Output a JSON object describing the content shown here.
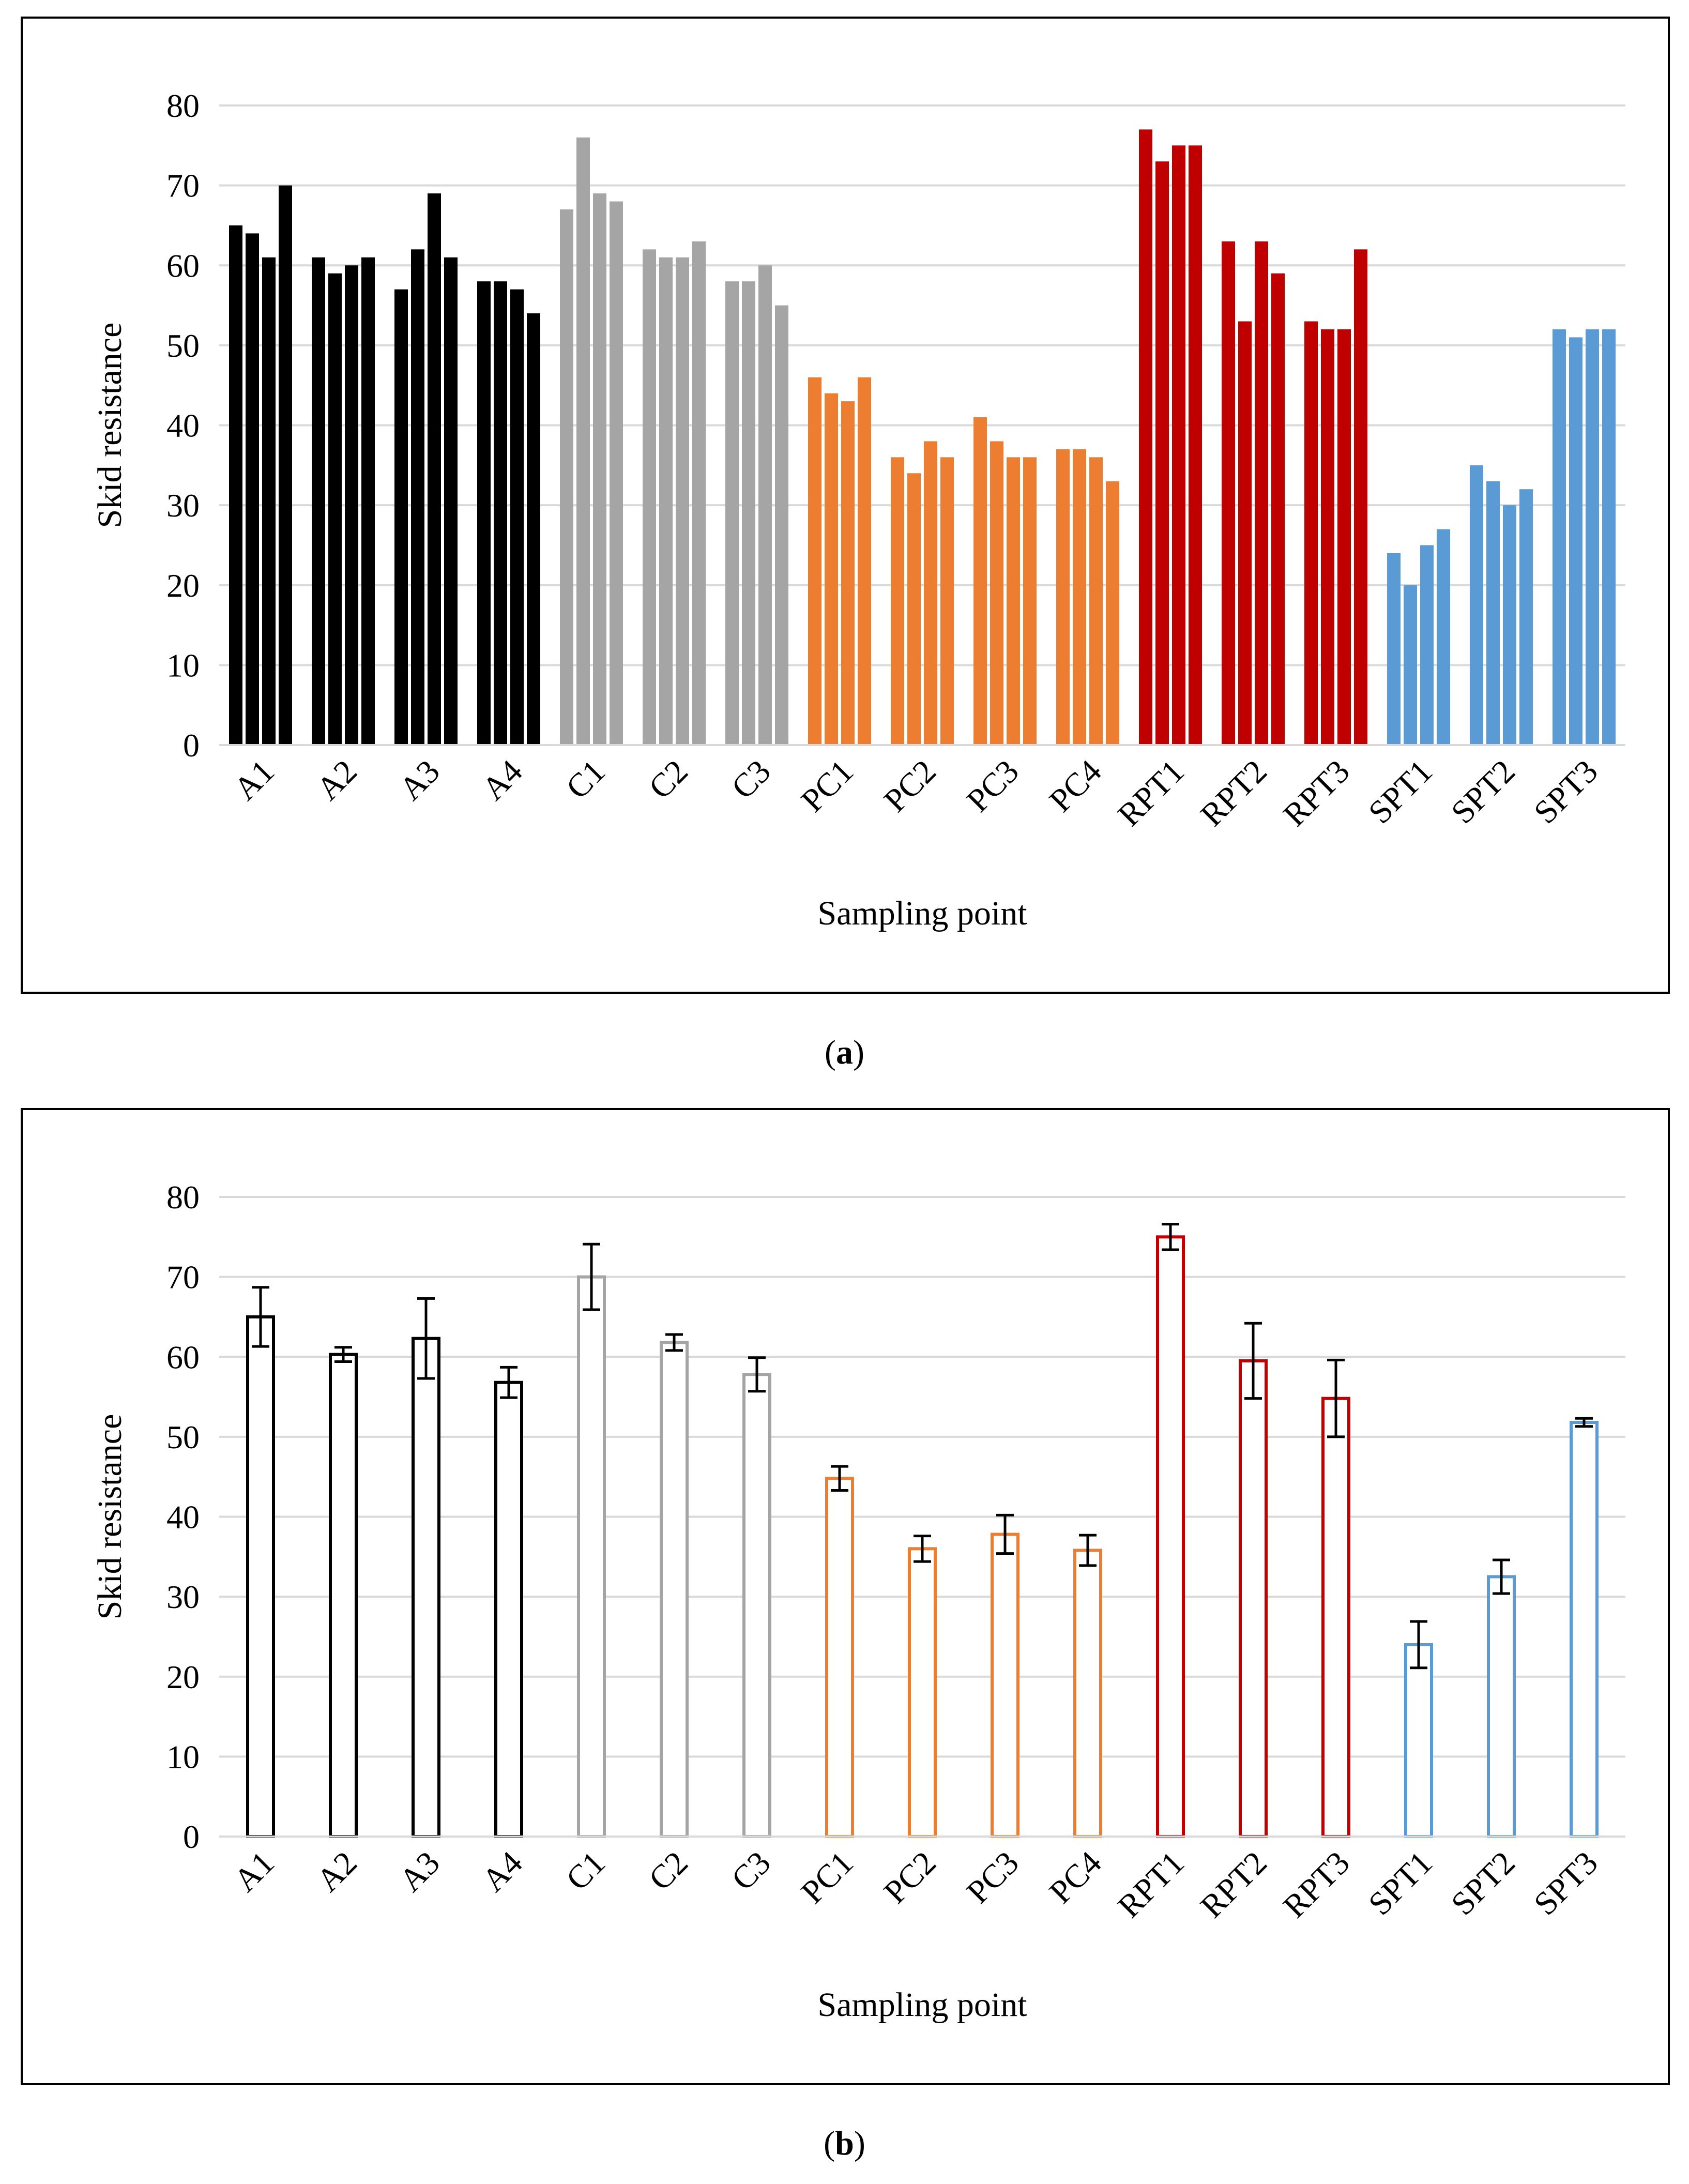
{
  "colors": {
    "A": "#000000",
    "C": "#a5a5a5",
    "PC": "#ed7d31",
    "RPT": "#c00000",
    "SPT": "#5b9bd5",
    "grid": "#d9d9d9",
    "error_bar": "#000000"
  },
  "captions": {
    "a_open": "(",
    "a_letter": "a",
    "a_close": ")",
    "b_open": "(",
    "b_letter": "b",
    "b_close": ")"
  },
  "chart_data": [
    {
      "id": "a",
      "type": "bar",
      "subtype": "grouped_individual_measurements",
      "xlabel": "Sampling point",
      "ylabel": "Skid resistance",
      "ylim": [
        0,
        80
      ],
      "yticks": [
        0,
        10,
        20,
        30,
        40,
        50,
        60,
        70,
        80
      ],
      "grid": true,
      "categories": [
        "A1",
        "A2",
        "A3",
        "A4",
        "C1",
        "C2",
        "C3",
        "PC1",
        "PC2",
        "PC3",
        "PC4",
        "RPT1",
        "RPT2",
        "RPT3",
        "SPT1",
        "SPT2",
        "SPT3"
      ],
      "groups": [
        "A",
        "A",
        "A",
        "A",
        "C",
        "C",
        "C",
        "PC",
        "PC",
        "PC",
        "PC",
        "RPT",
        "RPT",
        "RPT",
        "SPT",
        "SPT",
        "SPT"
      ],
      "measurements": [
        [
          65,
          64,
          61,
          70
        ],
        [
          61,
          59,
          60,
          61
        ],
        [
          57,
          62,
          69,
          61
        ],
        [
          58,
          58,
          57,
          54
        ],
        [
          67,
          76,
          69,
          68
        ],
        [
          62,
          61,
          61,
          63
        ],
        [
          58,
          58,
          60,
          55
        ],
        [
          46,
          44,
          43,
          46
        ],
        [
          36,
          34,
          38,
          36
        ],
        [
          41,
          38,
          36,
          36
        ],
        [
          37,
          37,
          36,
          33
        ],
        [
          77,
          73,
          75,
          75
        ],
        [
          63,
          53,
          63,
          59
        ],
        [
          53,
          52,
          52,
          62
        ],
        [
          24,
          20,
          25,
          27
        ],
        [
          35,
          33,
          30,
          32
        ],
        [
          52,
          51,
          52,
          52
        ]
      ]
    },
    {
      "id": "b",
      "type": "bar",
      "subtype": "mean_with_error_bars",
      "xlabel": "Sampling point",
      "ylabel": "Skid resistance",
      "ylim": [
        0,
        80
      ],
      "yticks": [
        0,
        10,
        20,
        30,
        40,
        50,
        60,
        70,
        80
      ],
      "grid": true,
      "categories": [
        "A1",
        "A2",
        "A3",
        "A4",
        "C1",
        "C2",
        "C3",
        "PC1",
        "PC2",
        "PC3",
        "PC4",
        "RPT1",
        "RPT2",
        "RPT3",
        "SPT1",
        "SPT2",
        "SPT3"
      ],
      "groups": [
        "A",
        "A",
        "A",
        "A",
        "C",
        "C",
        "C",
        "PC",
        "PC",
        "PC",
        "PC",
        "RPT",
        "RPT",
        "RPT",
        "SPT",
        "SPT",
        "SPT"
      ],
      "means": [
        65.0,
        60.3,
        62.3,
        56.8,
        70.0,
        61.8,
        57.8,
        44.8,
        36.0,
        37.8,
        35.8,
        75.0,
        59.5,
        54.8,
        24.0,
        32.5,
        51.8
      ],
      "errors": [
        3.7,
        0.9,
        5.0,
        1.9,
        4.1,
        1.0,
        2.1,
        1.5,
        1.6,
        2.4,
        1.9,
        1.6,
        4.7,
        4.8,
        2.9,
        2.1,
        0.5
      ]
    }
  ]
}
